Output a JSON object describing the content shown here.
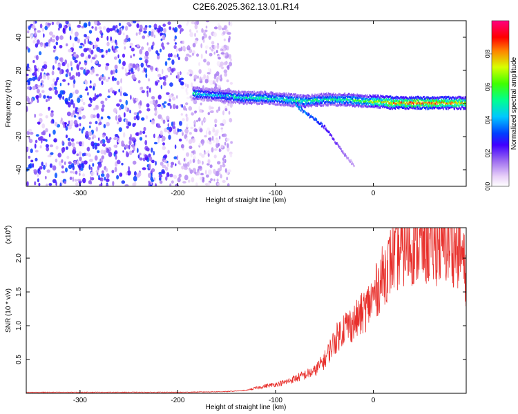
{
  "title": "C2E6.2025.362.13.01.R14",
  "chart_data": [
    {
      "type": "heatmap",
      "title": "C2E6.2025.362.13.01.R14",
      "xlabel": "Height of straight line (km)",
      "ylabel": "Frequency (Hz)",
      "xlim": [
        -355,
        95
      ],
      "ylim": [
        -50,
        50
      ],
      "x_ticks": [
        -300,
        -200,
        -100,
        0
      ],
      "x_tick_labels": [
        "-300",
        "-200",
        "-100",
        "0"
      ],
      "y_ticks": [
        -40,
        -20,
        0,
        20,
        40
      ],
      "y_tick_labels": [
        "-40",
        "-20",
        "0",
        "20",
        "40"
      ],
      "colorbar": {
        "label": "Normalized spectral amplitude",
        "range": [
          0,
          1
        ],
        "ticks": [
          0.0,
          0.2,
          0.4,
          0.6,
          0.8
        ],
        "tick_labels": [
          "0.0",
          "0.2",
          "0.4",
          "0.6",
          "0.8"
        ]
      },
      "noise_region": {
        "x_from": -355,
        "x_to": -145,
        "amplitude": 0.15
      },
      "main_track": {
        "x": [
          -185,
          -170,
          -150,
          -130,
          -110,
          -90,
          -70,
          -50,
          -30,
          -10,
          0,
          20,
          40,
          60,
          80,
          95
        ],
        "freq": [
          7,
          6,
          5,
          4,
          4,
          3,
          2,
          3,
          3,
          2,
          2,
          1,
          1,
          1,
          1,
          1
        ],
        "amplitude": [
          0.5,
          0.4,
          0.45,
          0.5,
          0.5,
          0.5,
          0.55,
          0.5,
          0.55,
          0.6,
          0.7,
          0.8,
          0.85,
          0.85,
          0.8,
          0.7
        ]
      },
      "branch_track": {
        "x": [
          -80,
          -70,
          -60,
          -50,
          -40,
          -30,
          -20
        ],
        "freq": [
          0,
          -5,
          -9,
          -14,
          -22,
          -30,
          -37
        ],
        "amplitude": [
          0.4,
          0.35,
          0.3,
          0.25,
          0.2,
          0.15,
          0.1
        ]
      }
    },
    {
      "type": "line",
      "xlabel": "Height of straight line (km)",
      "ylabel": "SNR (10 * v/v)",
      "exponent_label": "(x10",
      "exponent_power": "4",
      "exponent_close": ")",
      "xlim": [
        -355,
        95
      ],
      "ylim": [
        0,
        2.45
      ],
      "x_ticks": [
        -300,
        -200,
        -100,
        0
      ],
      "x_tick_labels": [
        "-300",
        "-200",
        "-100",
        "0"
      ],
      "y_ticks": [
        0.5,
        1.0,
        1.5,
        2.0
      ],
      "y_tick_labels": [
        "0.5",
        "1.0",
        "1.5",
        "2.0"
      ],
      "color": "#e8302c",
      "series": [
        {
          "name": "SNR",
          "x": [
            -355,
            -300,
            -250,
            -200,
            -150,
            -130,
            -110,
            -100,
            -90,
            -80,
            -70,
            -60,
            -50,
            -40,
            -30,
            -20,
            -10,
            0,
            10,
            20,
            30,
            40,
            50,
            60,
            70,
            80,
            90,
            95
          ],
          "values": [
            0.01,
            0.01,
            0.01,
            0.01,
            0.02,
            0.04,
            0.1,
            0.12,
            0.15,
            0.2,
            0.25,
            0.3,
            0.45,
            0.7,
            0.9,
            0.95,
            1.1,
            1.3,
            1.6,
            1.85,
            1.95,
            2.0,
            2.0,
            2.0,
            2.0,
            2.0,
            1.9,
            1.6
          ]
        }
      ]
    }
  ]
}
